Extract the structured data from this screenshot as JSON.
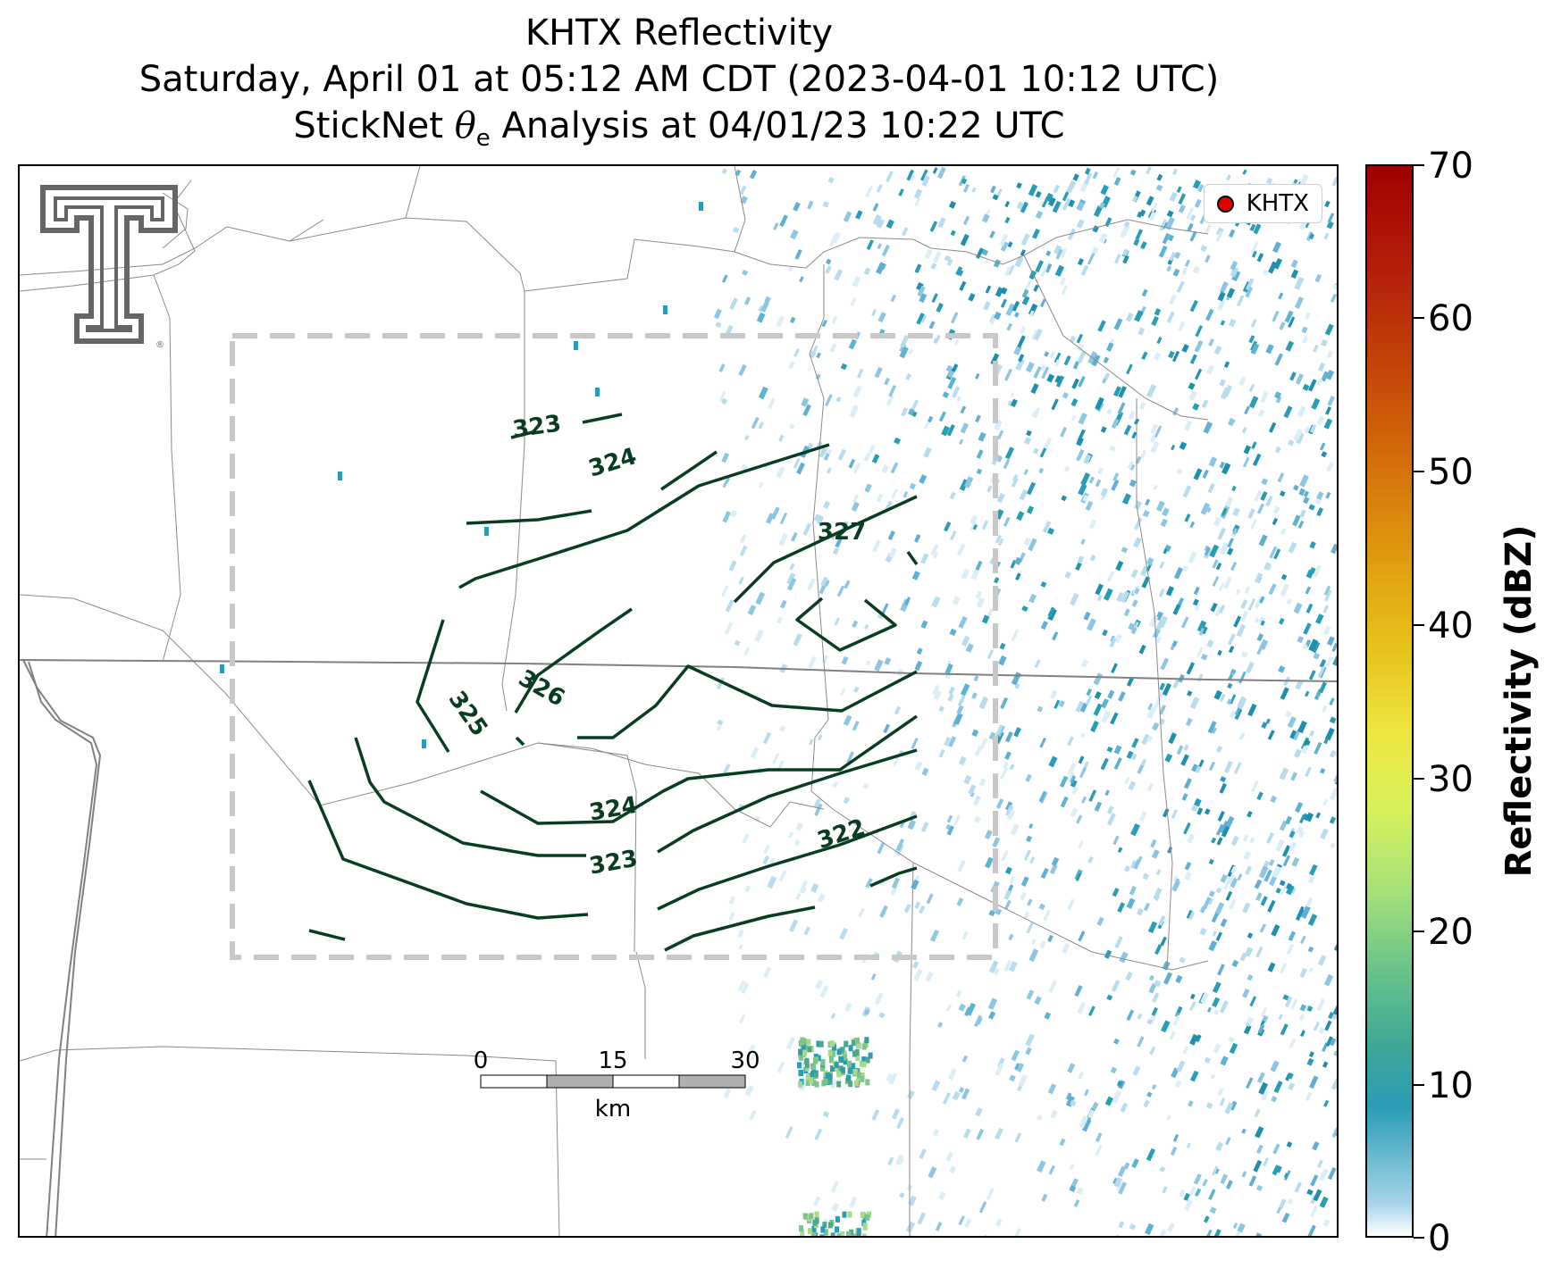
{
  "header": {
    "title_line1": "KHTX Reflectivity",
    "title_line2": "Saturday, April 01 at 05:12 AM CDT (2023-04-01 10:12 UTC)",
    "title_line3_prefix": "StickNet ",
    "title_line3_symbol": "θ",
    "title_line3_subscript": "e",
    "title_line3_suffix": " Analysis at 04/01/23 10:22 UTC"
  },
  "legend": {
    "label": "KHTX"
  },
  "colorbar": {
    "label": "Reflectivity (dBZ)",
    "ticks": [
      "70",
      "60",
      "50",
      "40",
      "30",
      "20",
      "10",
      "0"
    ],
    "min": 0,
    "max": 70
  },
  "scalebar": {
    "ticks": [
      "0",
      "15",
      "30"
    ],
    "unit": "km"
  },
  "contours": {
    "color": "#083d22",
    "labels": [
      "323",
      "324",
      "327",
      "326",
      "325",
      "324",
      "323",
      "322"
    ]
  },
  "colors": {
    "contour": "#083d22",
    "analysis_box": "#c8c8c8",
    "boundaries": "#8a8a8a",
    "radar_echo": "#2a9db6",
    "legend_marker": "#e00000"
  },
  "icons": {
    "logo": "texas-tech-double-t-logo"
  }
}
